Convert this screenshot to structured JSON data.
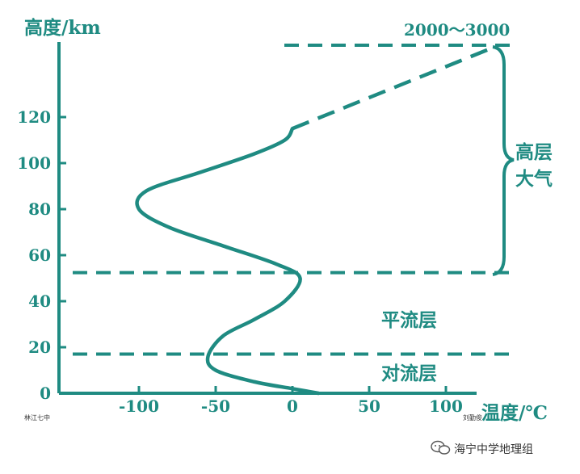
{
  "y_axis_title": "高度/km",
  "x_axis_title": "温度/℃",
  "top_label": "2000～3000",
  "layers": {
    "upper": "高层\n大气",
    "stratosphere": "平流层",
    "troposphere": "对流层"
  },
  "corner_left": "林江七中",
  "corner_right": "刘勤俊",
  "watermark": "海宁中学地理组",
  "colors": {
    "line": "#1f8b82",
    "text": "#1f8b82"
  },
  "chart_data": {
    "type": "line",
    "x_ticks": [
      "-100",
      "-50",
      "0",
      "50",
      "100"
    ],
    "y_ticks": [
      "0",
      "20",
      "40",
      "60",
      "80",
      "100",
      "120"
    ],
    "xlim": [
      -130,
      130
    ],
    "ylim": [
      0,
      150
    ],
    "boundaries_km": [
      17,
      51
    ],
    "series": [
      {
        "solid": [
          [
            17,
            0
          ],
          [
            0,
            2
          ],
          [
            -25,
            5
          ],
          [
            -50,
            10
          ],
          [
            -55,
            16
          ],
          [
            -45,
            25
          ],
          [
            -25,
            32
          ],
          [
            -5,
            40
          ],
          [
            5,
            50
          ],
          [
            -10,
            56
          ],
          [
            -45,
            64
          ],
          [
            -80,
            72
          ],
          [
            -100,
            80
          ],
          [
            -95,
            88
          ],
          [
            -60,
            96
          ],
          [
            -25,
            104
          ],
          [
            -5,
            110
          ],
          [
            0,
            115
          ]
        ],
        "dashed": [
          [
            0,
            115
          ],
          [
            130,
            150
          ]
        ]
      }
    ]
  }
}
